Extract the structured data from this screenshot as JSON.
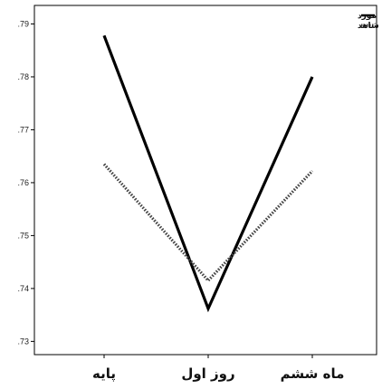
{
  "chart_data": {
    "type": "line",
    "categories": [
      "پایه",
      "روز اول",
      "ماه ششم"
    ],
    "series": [
      {
        "name": "مورد",
        "values": [
          0.7878,
          0.7362,
          0.78
        ],
        "style": "solid",
        "color": "#000000"
      },
      {
        "name": "شاهد",
        "values": [
          0.7635,
          0.7415,
          0.7622
        ],
        "style": "dotted",
        "color": "#444444"
      }
    ],
    "yticks": [
      ".73",
      ".74",
      ".75",
      ".76",
      ".77",
      ".78",
      ".79"
    ],
    "ytick_values": [
      0.73,
      0.74,
      0.75,
      0.76,
      0.77,
      0.78,
      0.79
    ],
    "ylim": [
      0.7275,
      0.7935
    ],
    "grid": false,
    "legend_position": "top-right"
  }
}
